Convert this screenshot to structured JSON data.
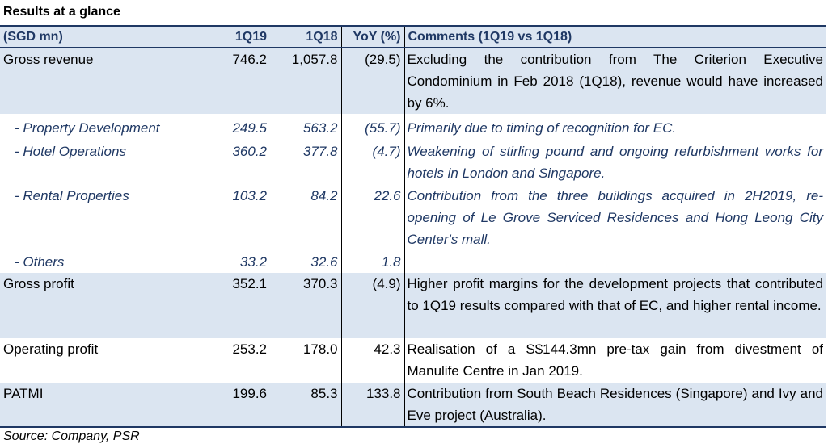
{
  "title": "Results at a glance",
  "headers": [
    "(SGD mn)",
    "1Q19",
    "1Q18",
    "YoY (%)",
    "Comments (1Q19 vs 1Q18)"
  ],
  "rows": [
    {
      "label": "Gross revenue",
      "q119": "746.2",
      "q118": "1,057.8",
      "yoy": "(29.5)",
      "comment": "Excluding the contribution from The Criterion Executive Condominium in Feb 2018 (1Q18), revenue would have increased by 6%."
    },
    {
      "label": "- Property Development",
      "q119": "249.5",
      "q118": "563.2",
      "yoy": "(55.7)",
      "comment": "Primarily due to timing of recognition for EC."
    },
    {
      "label": "- Hotel Operations",
      "q119": "360.2",
      "q118": "377.8",
      "yoy": "(4.7)",
      "comment": "Weakening of stirling pound and ongoing refurbishment works for hotels in London and Singapore."
    },
    {
      "label": "- Rental Properties",
      "q119": "103.2",
      "q118": "84.2",
      "yoy": "22.6",
      "comment": "Contribution from the three buildings acquired in 2H2019, re-opening of Le Grove Serviced Residences and Hong Leong City Center's mall."
    },
    {
      "label": "- Others",
      "q119": "33.2",
      "q118": "32.6",
      "yoy": "1.8",
      "comment": ""
    },
    {
      "label": "Gross profit",
      "q119": "352.1",
      "q118": "370.3",
      "yoy": "(4.9)",
      "comment": "Higher profit margins for the development projects that contributed to 1Q19 results compared with that of EC, and higher rental income."
    },
    {
      "label": "Operating profit",
      "q119": "253.2",
      "q118": "178.0",
      "yoy": "42.3",
      "comment": "Realisation of  a S$144.3mn pre-tax gain from divestment of Manulife Centre in Jan 2019."
    },
    {
      "label": "PATMI",
      "q119": "199.6",
      "q118": "85.3",
      "yoy": "133.8",
      "comment": "Contribution from South Beach Residences (Singapore) and Ivy and Eve project (Australia)."
    }
  ],
  "source": "Source: Company, PSR",
  "colors": {
    "header_bg": "#dbe5f1",
    "header_text": "#1f3864",
    "sub_text": "#1f3864",
    "shade_bg": "#dbe5f1"
  }
}
